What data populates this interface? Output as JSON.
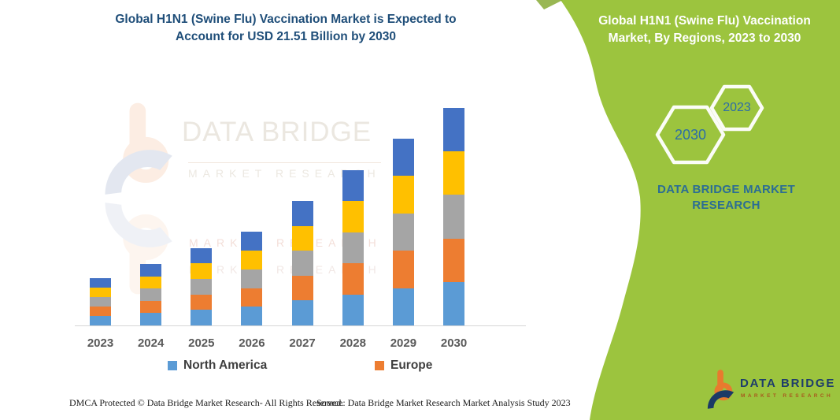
{
  "header": {
    "title_line1": "Global H1N1 (Swine Flu) Vaccination Market is Expected to",
    "title_line2": "Account for USD 21.51 Billion by 2030"
  },
  "side_panel": {
    "title": "Global H1N1 (Swine Flu) Vaccination Market, By Regions, 2023 to 2030",
    "hexagon_large_year": "2030",
    "hexagon_small_year": "2023",
    "brand_line1": "DATA BRIDGE MARKET",
    "brand_line2": "RESEARCH",
    "background_color": "#9cc43e"
  },
  "chart_data": {
    "type": "bar",
    "stacked": true,
    "title": "Global H1N1 (Swine Flu) Vaccination Market is Expected to Account for USD 21.51 Billion by 2030",
    "unit": "USD Billion",
    "categories": [
      "2023",
      "2024",
      "2025",
      "2026",
      "2027",
      "2028",
      "2029",
      "2030"
    ],
    "series": [
      {
        "name": "North America",
        "color": "#5B9BD5",
        "in_legend": true,
        "values": [
          0.93,
          1.21,
          1.53,
          1.85,
          2.46,
          3.07,
          3.69,
          4.3
        ]
      },
      {
        "name": "Europe",
        "color": "#ED7D31",
        "in_legend": true,
        "values": [
          0.93,
          1.21,
          1.53,
          1.85,
          2.46,
          3.07,
          3.69,
          4.3
        ]
      },
      {
        "name": "",
        "color": "#A5A5A5",
        "in_legend": false,
        "values": [
          0.93,
          1.21,
          1.53,
          1.85,
          2.46,
          3.07,
          3.69,
          4.3
        ]
      },
      {
        "name": "",
        "color": "#FFC000",
        "in_legend": false,
        "values": [
          0.93,
          1.21,
          1.53,
          1.85,
          2.46,
          3.07,
          3.69,
          4.3
        ]
      },
      {
        "name": "",
        "color": "#4472C4",
        "in_legend": false,
        "values": [
          0.93,
          1.21,
          1.53,
          1.85,
          2.46,
          3.07,
          3.69,
          4.31
        ]
      }
    ],
    "totals": [
      4.65,
      6.05,
      7.65,
      9.25,
      12.3,
      15.35,
      18.45,
      21.51
    ],
    "ylim": [
      0,
      22
    ],
    "gridlines": false,
    "y_axis_visible": false,
    "legend_position": "bottom"
  },
  "legend": {
    "items": [
      {
        "label": "North America",
        "color": "#5B9BD5"
      },
      {
        "label": "Europe",
        "color": "#ED7D31"
      }
    ]
  },
  "watermark": {
    "line1": "DATA BRIDGE",
    "line2": "MARKET RESEARCH"
  },
  "footer": {
    "left": "DMCA Protected © Data Bridge Market Research-  All Rights Reserved.",
    "right": "Source: Data Bridge Market Research  Market Analysis Study 2023"
  },
  "logo": {
    "name": "DATA BRIDGE",
    "sub": "MARKET RESEARCH"
  }
}
